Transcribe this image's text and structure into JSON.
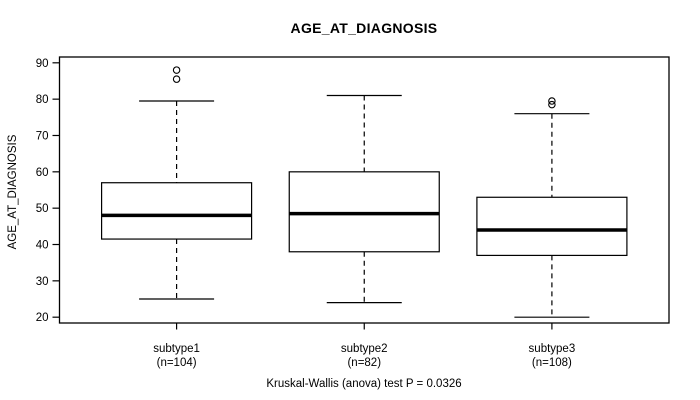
{
  "colors": {
    "foreground": "#000000",
    "background": "#ffffff"
  },
  "chart_data": {
    "type": "boxplot",
    "title": "AGE_AT_DIAGNOSIS",
    "ylabel": "AGE_AT_DIAGNOSIS",
    "xlabel": "",
    "caption": "Kruskal-Wallis (anova) test P = 0.0326",
    "grid": false,
    "ylim": [
      18.4,
      91.6
    ],
    "yticks": [
      20,
      30,
      40,
      50,
      60,
      70,
      80,
      90
    ],
    "groups": [
      {
        "label": "subtype1",
        "sublabel": "(n=104)",
        "n": 104,
        "whisker_low": 25,
        "q1": 41.5,
        "median": 48,
        "q3": 57,
        "whisker_high": 79.5,
        "outliers": [
          85.5,
          88
        ]
      },
      {
        "label": "subtype2",
        "sublabel": "(n=82)",
        "n": 82,
        "whisker_low": 24,
        "q1": 38,
        "median": 48.5,
        "q3": 60,
        "whisker_high": 81,
        "outliers": []
      },
      {
        "label": "subtype3",
        "sublabel": "(n=108)",
        "n": 108,
        "whisker_low": 20,
        "q1": 37,
        "median": 44,
        "q3": 53,
        "whisker_high": 76,
        "outliers": [
          78.5,
          79.5
        ]
      }
    ]
  }
}
